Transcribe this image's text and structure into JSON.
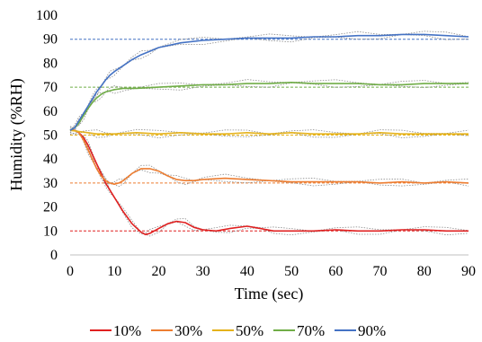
{
  "chart_data": {
    "type": "line",
    "title": "",
    "xlabel": "Time (sec)",
    "ylabel": "Humidity (%RH)",
    "xlim": [
      0,
      90
    ],
    "ylim": [
      0,
      100
    ],
    "xticks": [
      0,
      10,
      20,
      30,
      40,
      50,
      60,
      70,
      80,
      90
    ],
    "yticks": [
      0,
      10,
      20,
      30,
      40,
      50,
      60,
      70,
      80,
      90,
      100
    ],
    "grid": false,
    "legend_position": "bottom",
    "series": [
      {
        "name": "10%",
        "color": "#e02020",
        "target": 10,
        "x": [
          0,
          1,
          2,
          3,
          4,
          5,
          6,
          7,
          8,
          9,
          10,
          12,
          14,
          16,
          17,
          18,
          20,
          22,
          24,
          26,
          28,
          30,
          33,
          36,
          40,
          43,
          46,
          50,
          55,
          60,
          65,
          70,
          75,
          80,
          85,
          90
        ],
        "y": [
          52,
          52,
          51,
          49,
          46,
          42,
          38,
          34,
          30,
          27,
          24,
          18,
          13,
          9.5,
          8.5,
          9,
          11,
          13,
          14,
          13.5,
          11.5,
          10.5,
          10,
          11,
          12,
          11,
          10,
          10,
          10,
          10.5,
          10,
          10,
          10.5,
          10.5,
          10,
          10
        ]
      },
      {
        "name": "30%",
        "color": "#ed7d31",
        "target": 30,
        "x": [
          0,
          1,
          2,
          3,
          4,
          5,
          6,
          7,
          8,
          9,
          10,
          11,
          12,
          14,
          16,
          18,
          20,
          22,
          24,
          26,
          28,
          30,
          35,
          40,
          45,
          50,
          55,
          60,
          65,
          70,
          75,
          80,
          85,
          90
        ],
        "y": [
          52,
          52,
          51,
          48,
          44,
          40,
          36,
          33,
          31,
          30,
          29.5,
          30,
          31,
          34,
          36,
          36,
          35,
          33,
          31.5,
          31,
          31,
          31.5,
          32,
          31.5,
          31,
          30.5,
          30.5,
          30.5,
          30.5,
          30,
          30.5,
          30,
          30.5,
          30
        ]
      },
      {
        "name": "50%",
        "color": "#e5b21b",
        "target": 50,
        "x": [
          0,
          2,
          4,
          6,
          8,
          10,
          15,
          20,
          25,
          30,
          35,
          40,
          45,
          50,
          55,
          60,
          65,
          70,
          75,
          80,
          85,
          90
        ],
        "y": [
          52,
          51.5,
          51,
          50.5,
          50.5,
          50.5,
          51,
          50.5,
          51,
          50.5,
          50.5,
          51,
          50.5,
          51,
          50.5,
          50.5,
          50.5,
          51,
          50.5,
          50.5,
          50.5,
          50.5
        ]
      },
      {
        "name": "70%",
        "color": "#70ad47",
        "target": 70,
        "x": [
          0,
          1,
          2,
          3,
          4,
          5,
          6,
          7,
          8,
          9,
          10,
          12,
          15,
          20,
          25,
          30,
          35,
          40,
          45,
          50,
          55,
          60,
          65,
          70,
          75,
          80,
          85,
          90
        ],
        "y": [
          52,
          53,
          55,
          58,
          61,
          63.5,
          65.5,
          67,
          68,
          68.5,
          69,
          69.5,
          69.5,
          70,
          70.5,
          71,
          71,
          71.5,
          71.5,
          72,
          71.5,
          71.5,
          71.5,
          71,
          71,
          71.5,
          71.5,
          71.5
        ]
      },
      {
        "name": "90%",
        "color": "#4472c4",
        "target": 90,
        "x": [
          0,
          1,
          2,
          3,
          4,
          5,
          6,
          7,
          8,
          9,
          10,
          12,
          14,
          16,
          18,
          20,
          25,
          30,
          35,
          40,
          45,
          50,
          55,
          60,
          65,
          70,
          75,
          80,
          85,
          90
        ],
        "y": [
          52,
          53,
          56,
          59,
          62,
          65,
          68,
          70.5,
          73,
          75,
          76.5,
          79,
          81.5,
          83.5,
          85,
          86.5,
          88.5,
          89.5,
          90,
          90.5,
          90.5,
          90.5,
          91,
          91,
          91.5,
          91.5,
          92,
          92,
          91.5,
          91
        ]
      }
    ]
  }
}
